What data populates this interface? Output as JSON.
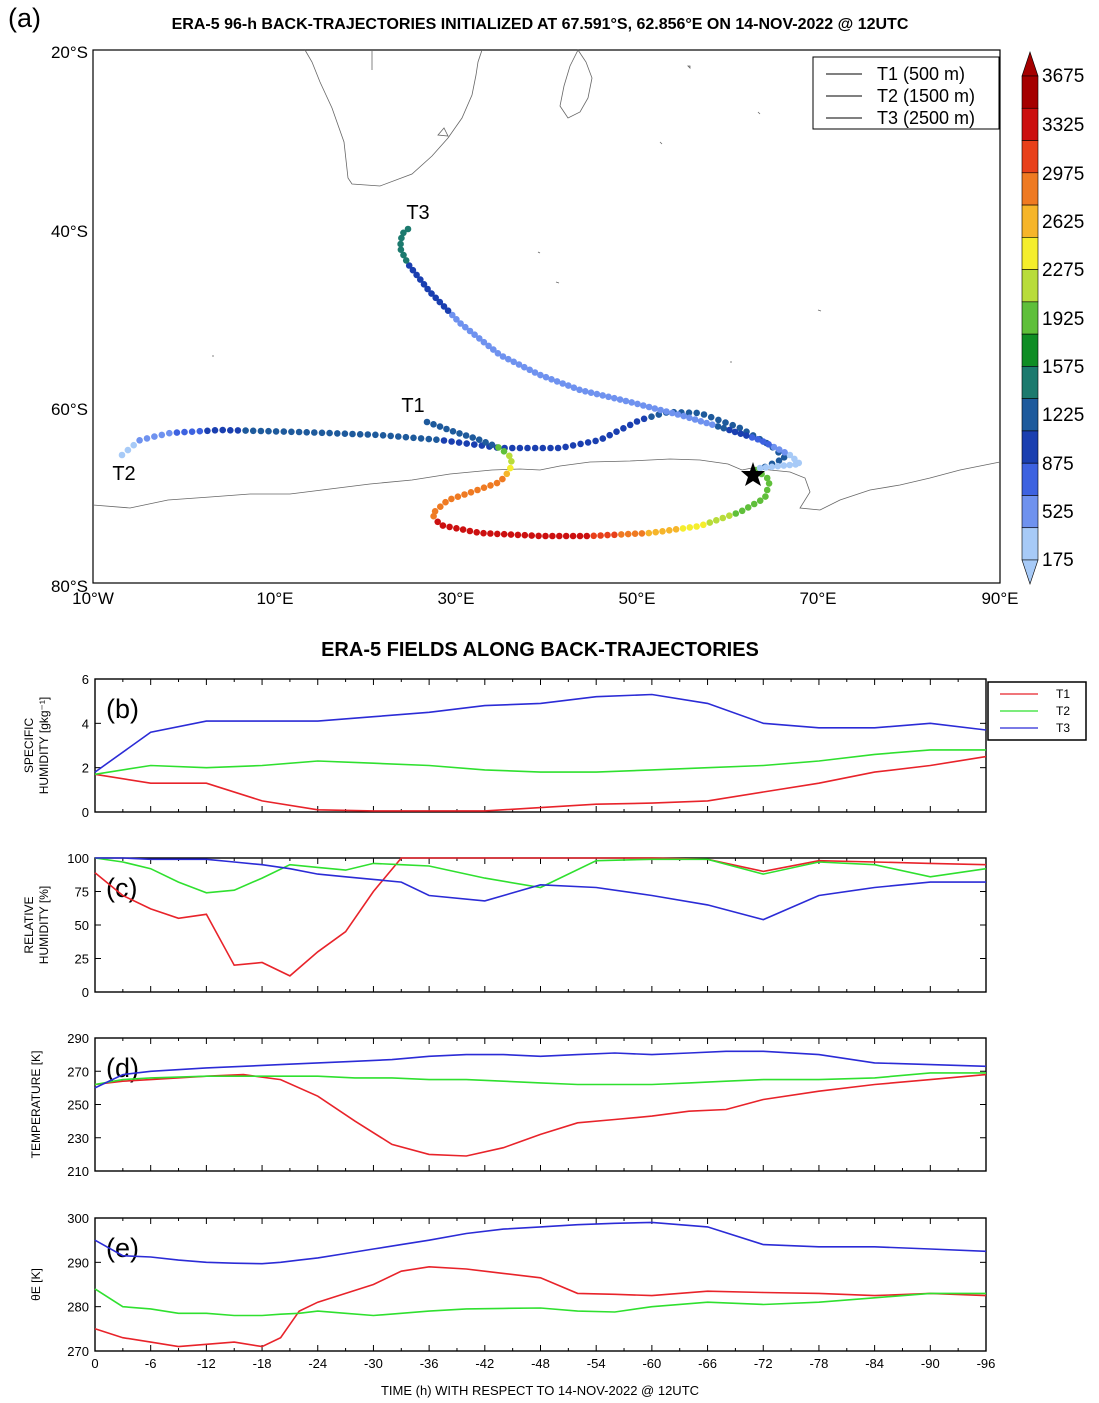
{
  "panel_a": {
    "label": "(a)",
    "title": "ERA-5 96-h BACK-TRAJECTORIES INITIALIZED AT 67.591°S, 62.856°E ON 14-NOV-2022 @ 12UTC",
    "lat_ticks": [
      "20°S",
      "40°S",
      "60°S",
      "80°S"
    ],
    "lon_ticks": [
      "10°W",
      "10°E",
      "30°E",
      "50°E",
      "70°E",
      "90°E"
    ],
    "legend": [
      "T1 (500 m)",
      "T2 (1500 m)",
      "T3 (2500 m)"
    ],
    "traj_labels": [
      "T1",
      "T2",
      "T3"
    ],
    "colorbar_labels": [
      "3675",
      "3325",
      "2975",
      "2625",
      "2275",
      "1925",
      "1575",
      "1225",
      "875",
      "525",
      "175"
    ],
    "colorbar_colors": [
      "#a50000",
      "#cc1010",
      "#e8401a",
      "#ef7a22",
      "#f6b52a",
      "#f5ee2c",
      "#b8dc3a",
      "#5fbf3a",
      "#0f8d25",
      "#1c7a6e",
      "#1e5a9c",
      "#1a3fb0",
      "#3d62e0",
      "#6f92ef",
      "#a7caf7"
    ]
  },
  "section_title": "ERA-5 FIELDS ALONG BACK-TRAJECTORIES",
  "series_colors": {
    "T1": "#e8232a",
    "T2": "#2fe02f",
    "T3": "#2b2bd6"
  },
  "legend_b": [
    "T1",
    "T2",
    "T3"
  ],
  "xlabel": "TIME (h) WITH RESPECT TO 14-NOV-2022 @ 12UTC",
  "x_ticks": [
    "0",
    "-6",
    "-12",
    "-18",
    "-24",
    "-30",
    "-36",
    "-42",
    "-48",
    "-54",
    "-60",
    "-66",
    "-72",
    "-78",
    "-84",
    "-90",
    "-96"
  ],
  "chart_data": [
    {
      "type": "line",
      "panel": "(b)",
      "ylabel": [
        "SPECIFIC",
        "HUMIDITY [gkg⁻¹]"
      ],
      "ylim": [
        0,
        6
      ],
      "yticks": [
        "0",
        "2",
        "4",
        "6"
      ],
      "x": [
        0,
        -6,
        -12,
        -18,
        -24,
        -30,
        -36,
        -42,
        -48,
        -54,
        -60,
        -66,
        -72,
        -78,
        -84,
        -90,
        -96
      ],
      "series": [
        {
          "name": "T1",
          "values": [
            1.7,
            1.3,
            1.3,
            0.5,
            0.1,
            0.05,
            0.05,
            0.05,
            0.2,
            0.35,
            0.4,
            0.5,
            0.9,
            1.3,
            1.8,
            2.1,
            2.5
          ]
        },
        {
          "name": "T2",
          "values": [
            1.7,
            2.1,
            2.0,
            2.1,
            2.3,
            2.2,
            2.1,
            1.9,
            1.8,
            1.8,
            1.9,
            2.0,
            2.1,
            2.3,
            2.6,
            2.8,
            2.8
          ]
        },
        {
          "name": "T3",
          "values": [
            1.8,
            3.6,
            4.1,
            4.1,
            4.1,
            4.3,
            4.5,
            4.8,
            4.9,
            5.2,
            5.3,
            4.9,
            4.0,
            3.8,
            3.8,
            4.0,
            3.7
          ]
        }
      ]
    },
    {
      "type": "line",
      "panel": "(c)",
      "ylabel": [
        "RELATIVE",
        "HUMIDITY [%]"
      ],
      "ylim": [
        0,
        100
      ],
      "yticks": [
        "0",
        "25",
        "50",
        "75",
        "100"
      ],
      "x": [
        0,
        -3,
        -6,
        -9,
        -12,
        -15,
        -18,
        -21,
        -24,
        -27,
        -30,
        -33,
        -36,
        -42,
        -48,
        -54,
        -60,
        -66,
        -72,
        -78,
        -84,
        -90,
        -96
      ],
      "series": [
        {
          "name": "T1",
          "values": [
            89,
            72,
            62,
            55,
            58,
            20,
            22,
            12,
            30,
            45,
            75,
            100,
            100,
            100,
            100,
            100,
            100,
            99,
            90,
            98,
            97,
            96,
            95
          ]
        },
        {
          "name": "T2",
          "values": [
            100,
            97,
            92,
            82,
            74,
            76,
            85,
            95,
            93,
            91,
            96,
            95,
            94,
            85,
            78,
            98,
            99,
            99,
            88,
            97,
            95,
            86,
            92
          ]
        },
        {
          "name": "T3",
          "values": [
            100,
            100,
            99,
            99,
            99,
            97,
            95,
            92,
            88,
            86,
            84,
            82,
            72,
            68,
            80,
            78,
            72,
            65,
            54,
            72,
            78,
            82,
            82
          ]
        }
      ]
    },
    {
      "type": "line",
      "panel": "(d)",
      "ylabel": [
        "TEMPERATURE [K]"
      ],
      "ylim": [
        210,
        290
      ],
      "yticks": [
        "210",
        "230",
        "250",
        "270",
        "290"
      ],
      "x": [
        0,
        -3,
        -6,
        -12,
        -16,
        -20,
        -24,
        -28,
        -32,
        -36,
        -40,
        -44,
        -48,
        -52,
        -56,
        -60,
        -64,
        -68,
        -72,
        -78,
        -84,
        -90,
        -96
      ],
      "series": [
        {
          "name": "T1",
          "values": [
            262,
            264,
            265,
            267,
            268,
            265,
            255,
            240,
            226,
            220,
            219,
            224,
            232,
            239,
            241,
            243,
            246,
            247,
            253,
            258,
            262,
            265,
            268
          ]
        },
        {
          "name": "T2",
          "values": [
            262,
            265,
            266,
            267,
            267,
            267,
            267,
            266,
            266,
            265,
            265,
            264,
            263,
            262,
            262,
            262,
            263,
            264,
            265,
            265,
            266,
            269,
            269
          ]
        },
        {
          "name": "T3",
          "values": [
            260,
            268,
            270,
            272,
            273,
            274,
            275,
            276,
            277,
            279,
            280,
            280,
            279,
            280,
            281,
            280,
            281,
            282,
            282,
            280,
            275,
            274,
            273
          ]
        }
      ]
    },
    {
      "type": "line",
      "panel": "(e)",
      "ylabel": [
        "θ_E [K]"
      ],
      "ylim": [
        270,
        300
      ],
      "yticks": [
        "270",
        "280",
        "290",
        "300"
      ],
      "x": [
        0,
        -3,
        -6,
        -9,
        -12,
        -15,
        -18,
        -20,
        -22,
        -24,
        -27,
        -30,
        -33,
        -36,
        -40,
        -44,
        -48,
        -52,
        -56,
        -60,
        -66,
        -72,
        -78,
        -84,
        -90,
        -96
      ],
      "series": [
        {
          "name": "T1",
          "values": [
            275,
            273,
            272,
            271,
            271.5,
            272,
            271,
            273,
            279,
            281,
            283,
            285,
            288,
            289,
            288.5,
            287.5,
            286.5,
            283,
            282.8,
            282.5,
            283.5,
            283.2,
            283,
            282.5,
            283,
            282.5
          ]
        },
        {
          "name": "T2",
          "values": [
            284,
            280,
            279.5,
            278.5,
            278.5,
            278,
            278,
            278.3,
            278.5,
            279,
            278.5,
            278,
            278.5,
            279,
            279.5,
            279.6,
            279.7,
            279,
            278.8,
            280,
            281,
            280.5,
            281,
            282,
            283,
            283
          ]
        },
        {
          "name": "T3",
          "values": [
            295,
            291.5,
            291.2,
            290.5,
            290,
            289.8,
            289.7,
            290,
            290.5,
            291,
            292,
            293,
            294,
            295,
            296.5,
            297.5,
            298,
            298.5,
            298.8,
            299,
            298,
            294,
            293.5,
            293.5,
            293,
            292.5
          ]
        }
      ]
    }
  ]
}
